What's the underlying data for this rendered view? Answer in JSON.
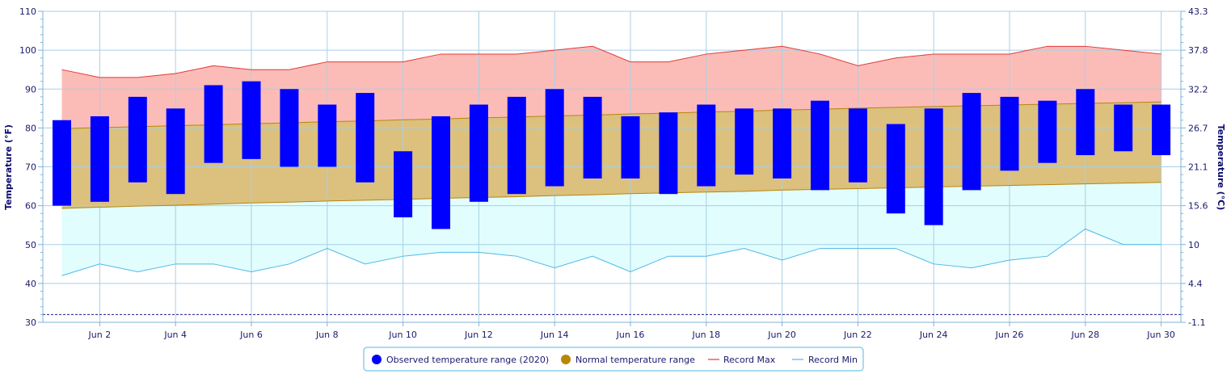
{
  "chart_data": {
    "type": "bar",
    "x": [
      1,
      2,
      3,
      4,
      5,
      6,
      7,
      8,
      9,
      10,
      11,
      12,
      13,
      14,
      15,
      16,
      17,
      18,
      19,
      20,
      21,
      22,
      23,
      24,
      25,
      26,
      27,
      28,
      29,
      30
    ],
    "x_tick_labels": [
      "Jun 2",
      "Jun 4",
      "Jun 6",
      "Jun 8",
      "Jun 10",
      "Jun 12",
      "Jun 14",
      "Jun 16",
      "Jun 18",
      "Jun 20",
      "Jun 22",
      "Jun 24",
      "Jun 26",
      "Jun 28",
      "Jun 30"
    ],
    "x_tick_days": [
      2,
      4,
      6,
      8,
      10,
      12,
      14,
      16,
      18,
      20,
      22,
      24,
      26,
      28,
      30
    ],
    "ylabel_left": "Temperature (°F)",
    "ylabel_right": "Temperature (°C)",
    "ylim": [
      30,
      110
    ],
    "y_ticks_left": [
      "30",
      "40",
      "50",
      "60",
      "70",
      "80",
      "90",
      "100",
      "110"
    ],
    "y_ticks_right": [
      "-1.1",
      "4.4",
      "10",
      "15.6",
      "21.1",
      "26.7",
      "32.2",
      "37.8",
      "43.3"
    ],
    "freezing_line": 32,
    "grid": true,
    "legend_position": "bottom-center",
    "series": [
      {
        "name": "Observed temperature range (2020)",
        "kind": "range-bar",
        "color": "#0000ff",
        "low": [
          60,
          61,
          66,
          63,
          71,
          72,
          70,
          70,
          66,
          57,
          54,
          61,
          63,
          65,
          67,
          67,
          63,
          65,
          68,
          67,
          64,
          66,
          58,
          55,
          64,
          69,
          71,
          73,
          74,
          73
        ],
        "high": [
          82,
          83,
          88,
          85,
          91,
          92,
          90,
          86,
          89,
          74,
          83,
          86,
          88,
          90,
          88,
          83,
          84,
          86,
          85,
          85,
          87,
          85,
          81,
          85,
          89,
          88,
          87,
          90,
          86,
          86
        ]
      },
      {
        "name": "Normal temperature range",
        "kind": "range-area",
        "color": "#b8860b",
        "fill": "#dbc07e",
        "low": [
          59.3,
          59.6,
          59.9,
          60.1,
          60.4,
          60.7,
          60.9,
          61.2,
          61.4,
          61.6,
          61.9,
          62.1,
          62.3,
          62.6,
          62.8,
          63.1,
          63.3,
          63.5,
          63.7,
          64.0,
          64.2,
          64.4,
          64.6,
          64.8,
          65.0,
          65.2,
          65.4,
          65.6,
          65.8,
          66.0
        ],
        "high": [
          79.8,
          80.1,
          80.3,
          80.6,
          80.8,
          81.1,
          81.3,
          81.6,
          81.8,
          82.1,
          82.3,
          82.6,
          82.8,
          83.1,
          83.3,
          83.6,
          83.8,
          84.1,
          84.3,
          84.6,
          84.8,
          85.1,
          85.3,
          85.5,
          85.7,
          85.9,
          86.1,
          86.3,
          86.5,
          86.7
        ]
      },
      {
        "name": "Record Max",
        "kind": "line",
        "color": "#e53935",
        "fill": "#fbbcb8",
        "values": [
          95,
          93,
          93,
          94,
          96,
          95,
          95,
          97,
          97,
          97,
          99,
          99,
          99,
          100,
          101,
          97,
          97,
          99,
          100,
          101,
          99,
          96,
          98,
          99,
          99,
          99,
          101,
          101,
          100,
          99
        ]
      },
      {
        "name": "Record Min",
        "kind": "line",
        "color": "#4fb8e8",
        "fill": "#e1fdfd",
        "values": [
          42,
          45,
          43,
          45,
          45,
          43,
          45,
          49,
          45,
          47,
          48,
          48,
          47,
          44,
          47,
          43,
          47,
          47,
          49,
          46,
          49,
          49,
          49,
          45,
          44,
          46,
          47,
          54,
          50,
          50
        ]
      }
    ]
  }
}
